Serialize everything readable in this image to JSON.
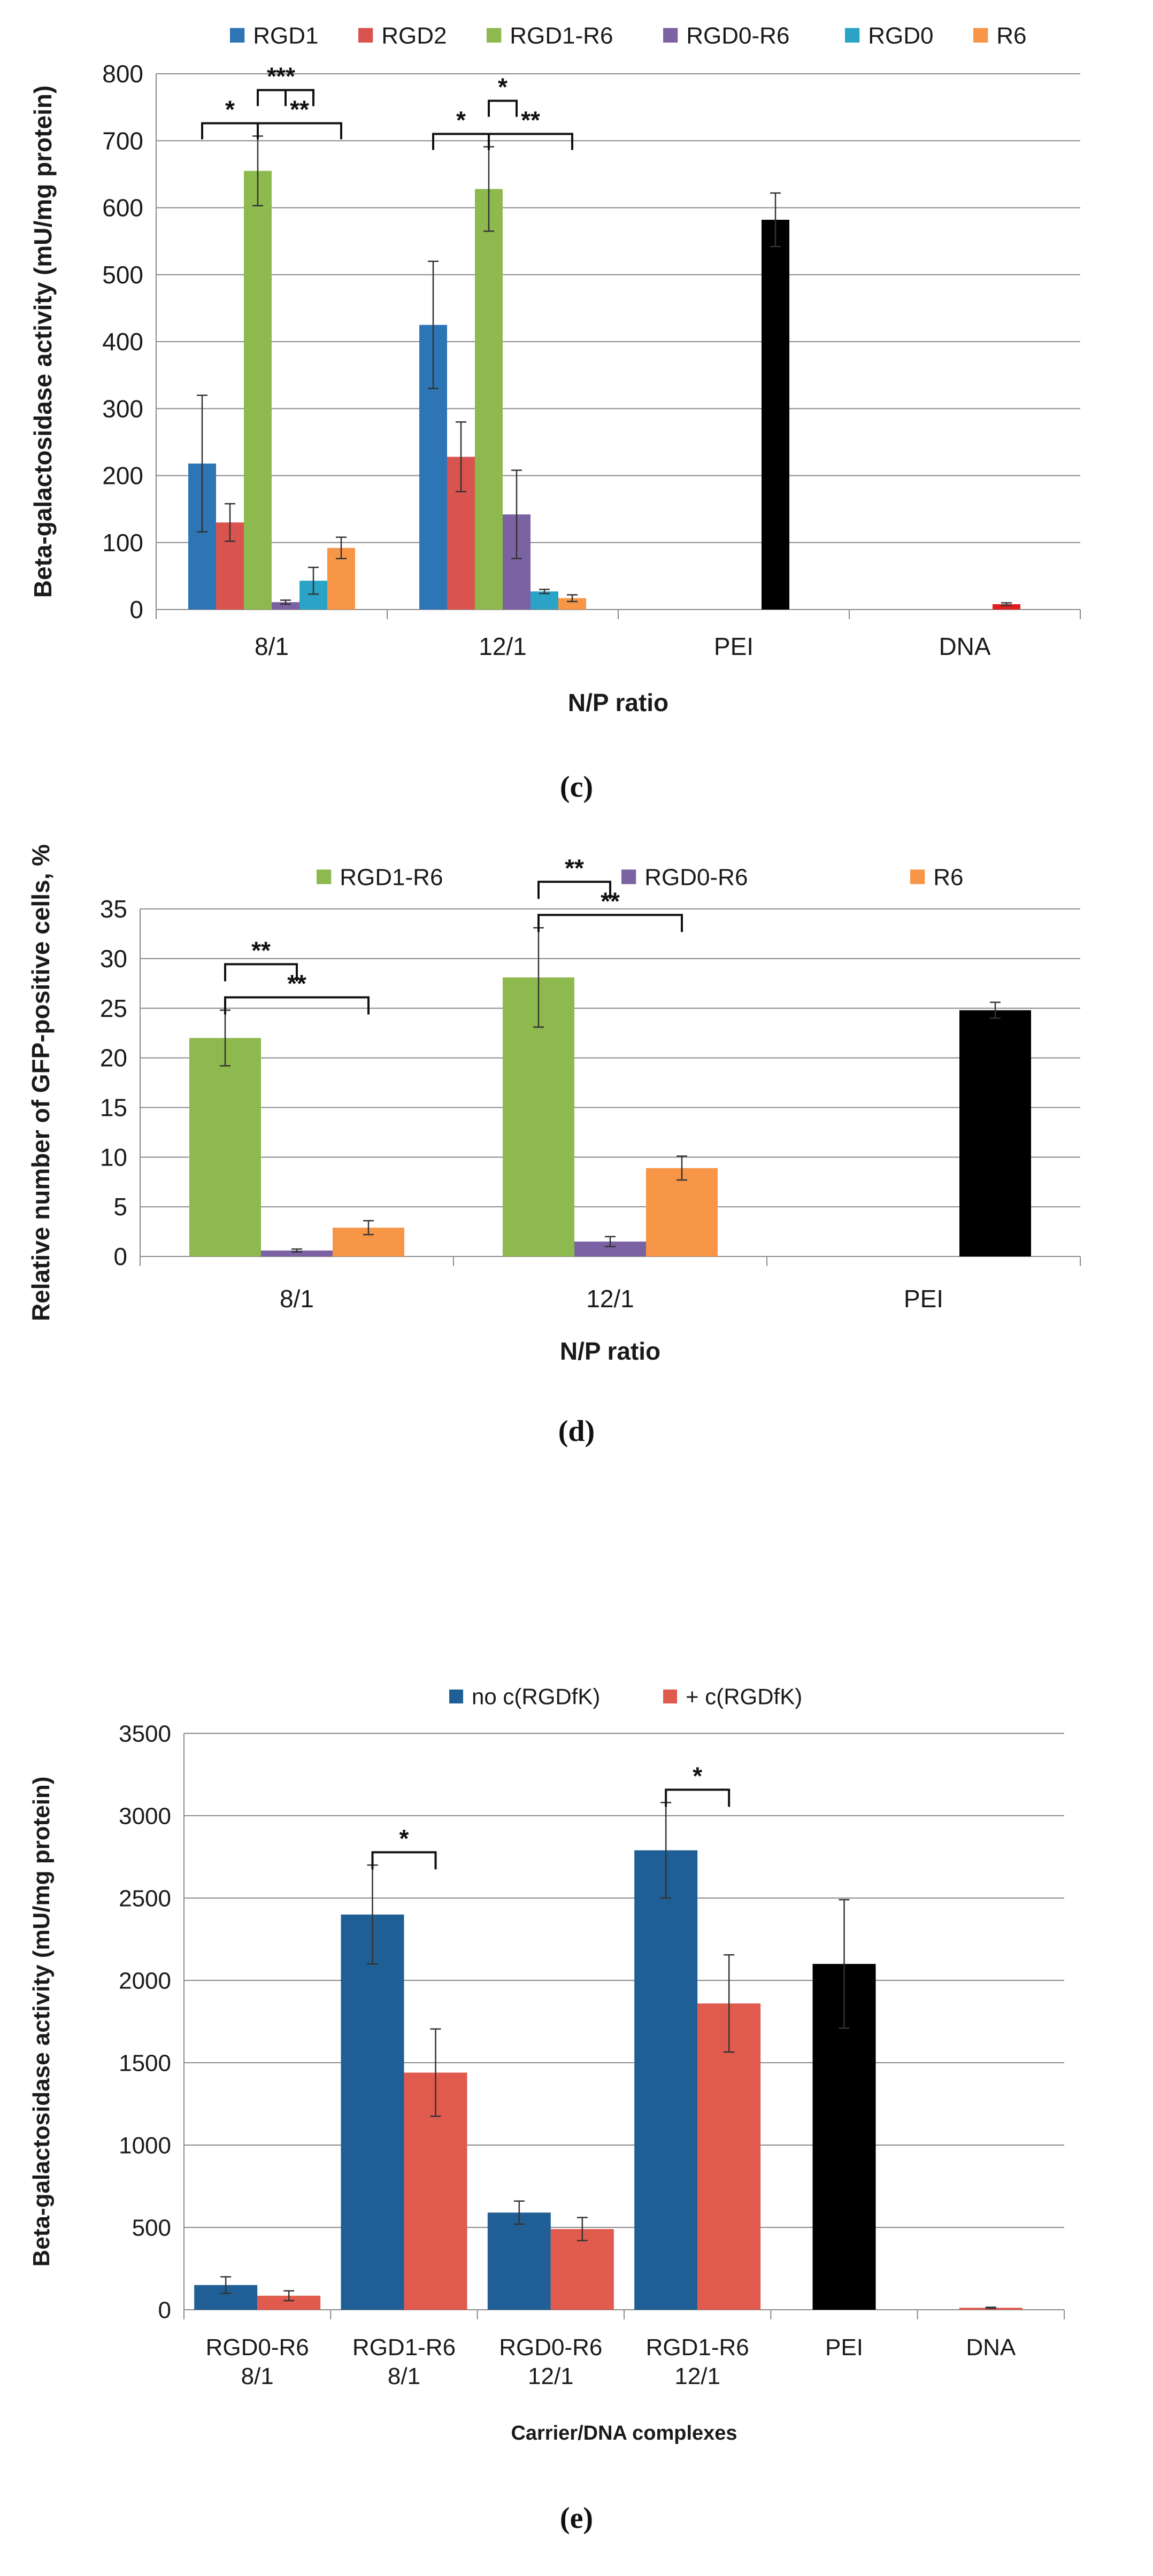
{
  "chart_data": [
    {
      "panel": "(c)",
      "type": "bar",
      "categories": [
        "8/1",
        "12/1",
        "PEI",
        "DNA"
      ],
      "xlabel": "N/P ratio",
      "ylabel": "Beta-galactosidase  activity (mU/mg protein)",
      "ylim": [
        0,
        800
      ],
      "yticks": [
        0,
        100,
        200,
        300,
        400,
        500,
        600,
        700,
        800
      ],
      "grid": true,
      "legend_position": "top",
      "series": [
        {
          "name": "RGD1",
          "color": "#2E75B6",
          "values": [
            218,
            425,
            null,
            null
          ],
          "errors": [
            102,
            95,
            null,
            null
          ]
        },
        {
          "name": "RGD2",
          "color": "#D9534F",
          "values": [
            130,
            228,
            null,
            null
          ],
          "errors": [
            28,
            52,
            null,
            null
          ]
        },
        {
          "name": "RGD1-R6",
          "color": "#8DB94E",
          "values": [
            655,
            628,
            null,
            null
          ],
          "errors": [
            52,
            63,
            null,
            null
          ]
        },
        {
          "name": "RGD0-R6",
          "color": "#7B62A3",
          "values": [
            11,
            142,
            null,
            null
          ],
          "errors": [
            3,
            66,
            null,
            null
          ]
        },
        {
          "name": "RGD0",
          "color": "#2BA3C6",
          "values": [
            43,
            27,
            null,
            null
          ],
          "errors": [
            20,
            3,
            null,
            null
          ]
        },
        {
          "name": "R6",
          "color": "#F79646",
          "values": [
            92,
            17,
            null,
            null
          ],
          "errors": [
            16,
            5,
            null,
            null
          ]
        }
      ],
      "extra_bars": [
        {
          "category": "PEI",
          "name": "PEI",
          "color": "#000000",
          "value": 582,
          "error": 40
        },
        {
          "category": "DNA",
          "name": "DNA",
          "color": "#E02020",
          "value": 8,
          "error": 2
        }
      ],
      "significance": [
        {
          "category": "8/1",
          "from": 0,
          "to": 2,
          "label": "*",
          "level": 1
        },
        {
          "category": "8/1",
          "from": 2,
          "to": 3,
          "label": "*",
          "level": 2
        },
        {
          "category": "8/1",
          "from": 2,
          "to": 4,
          "label": "**",
          "level": 2
        },
        {
          "category": "8/1",
          "from": 2,
          "to": 5,
          "label": "**",
          "level": 1
        },
        {
          "category": "12/1",
          "from": 0,
          "to": 2,
          "label": "*",
          "level": 1
        },
        {
          "category": "12/1",
          "from": 2,
          "to": 3,
          "label": "*",
          "level": 2
        },
        {
          "category": "12/1",
          "from": 2,
          "to": 5,
          "label": "**",
          "level": 1
        }
      ]
    },
    {
      "panel": "(d)",
      "type": "bar",
      "categories": [
        "8/1",
        "12/1",
        "PEI"
      ],
      "xlabel": "N/P ratio",
      "ylabel": "Relative number of GFP-positive  cells, %",
      "ylim": [
        0,
        35
      ],
      "yticks": [
        0,
        5,
        10,
        15,
        20,
        25,
        30,
        35
      ],
      "grid": true,
      "legend_position": "top",
      "series": [
        {
          "name": "RGD1-R6",
          "color": "#8DB94E",
          "values": [
            22.0,
            28.1,
            null
          ],
          "errors": [
            2.8,
            5.0,
            null
          ]
        },
        {
          "name": "RGD0-R6",
          "color": "#7B62A3",
          "values": [
            0.6,
            1.5,
            null
          ],
          "errors": [
            0.15,
            0.5,
            null
          ]
        },
        {
          "name": "R6",
          "color": "#F79646",
          "values": [
            2.9,
            8.9,
            null
          ],
          "errors": [
            0.7,
            1.2,
            null
          ]
        }
      ],
      "extra_bars": [
        {
          "category": "PEI",
          "name": "PEI",
          "color": "#000000",
          "value": 24.8,
          "error": 0.8
        }
      ],
      "significance": [
        {
          "category": "8/1",
          "from": 0,
          "to": 1,
          "label": "**",
          "level": 2
        },
        {
          "category": "8/1",
          "from": 0,
          "to": 2,
          "label": "**",
          "level": 1
        },
        {
          "category": "12/1",
          "from": 0,
          "to": 1,
          "label": "**",
          "level": 2
        },
        {
          "category": "12/1",
          "from": 0,
          "to": 2,
          "label": "**",
          "level": 1
        }
      ]
    },
    {
      "panel": "(e)",
      "type": "bar",
      "categories": [
        [
          "RGD0-R6",
          "8/1"
        ],
        [
          "RGD1-R6",
          "8/1"
        ],
        [
          "RGD0-R6",
          "12/1"
        ],
        [
          "RGD1-R6",
          "12/1"
        ],
        [
          "PEI"
        ],
        [
          "DNA"
        ]
      ],
      "xlabel": "Carrier/DNA complexes",
      "ylabel": "Beta-galactosidase  activity (mU/mg protein)",
      "ylim": [
        0,
        3500
      ],
      "yticks": [
        0,
        500,
        1000,
        1500,
        2000,
        2500,
        3000,
        3500
      ],
      "grid": true,
      "legend_position": "top",
      "series": [
        {
          "name": "no c(RGDfK)",
          "color": "#1F5F96",
          "values": [
            150,
            2400,
            590,
            2790,
            null,
            null
          ],
          "errors": [
            50,
            300,
            70,
            290,
            null,
            null
          ]
        },
        {
          "name": "+ c(RGDfK)",
          "color": "#E05A4E",
          "values": [
            85,
            1440,
            490,
            1860,
            null,
            null
          ],
          "errors": [
            30,
            265,
            70,
            295,
            null,
            null
          ]
        }
      ],
      "extra_bars": [
        {
          "category": "PEI",
          "name": "PEI",
          "color": "#000000",
          "value": 2100,
          "error": 390
        },
        {
          "category": "DNA",
          "name": "DNA",
          "color": "#E05A4E",
          "value": 12,
          "error": 3
        }
      ],
      "significance": [
        {
          "category": "RGD1-R6 8/1",
          "from": 0,
          "to": 1,
          "label": "*",
          "level": 1
        },
        {
          "category": "RGD1-R6 12/1",
          "from": 0,
          "to": 1,
          "label": "*",
          "level": 1
        }
      ]
    }
  ]
}
